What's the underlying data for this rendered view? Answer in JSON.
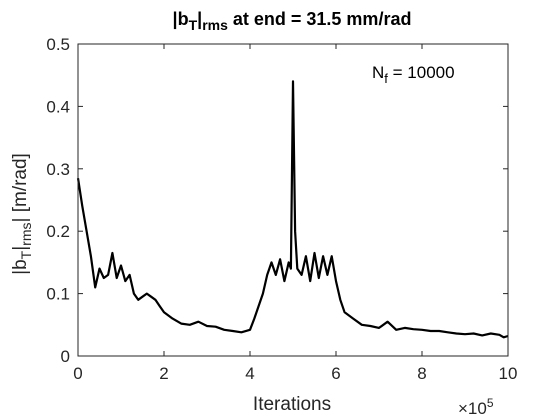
{
  "chart_data": {
    "type": "line",
    "title": {
      "main": "|b",
      "sub1": "T",
      "mid": "|",
      "sub2": "rms",
      "tail": " at end = 31.5 mm/rad"
    },
    "xlabel": "Iterations",
    "ylabel": {
      "pre": "|b",
      "sub1": "T",
      "mid": "|",
      "sub2": "rms",
      "post": "| [m/rad]"
    },
    "x_multiplier": {
      "base": "×10",
      "exponent": "5"
    },
    "xlim": [
      0,
      10
    ],
    "ylim": [
      0,
      0.5
    ],
    "xticks": [
      "0",
      "2",
      "4",
      "6",
      "8",
      "10"
    ],
    "yticks": [
      "0",
      "0.1",
      "0.2",
      "0.3",
      "0.4",
      "0.5"
    ],
    "xtick_values": [
      0,
      2,
      4,
      6,
      8,
      10
    ],
    "ytick_values": [
      0,
      0.1,
      0.2,
      0.3,
      0.4,
      0.5
    ],
    "grid": false,
    "annotation": {
      "base": "N",
      "sub": "f",
      "tail": " = 10000"
    },
    "series": [
      {
        "color": "#000000",
        "x": [
          0,
          0.1,
          0.2,
          0.3,
          0.4,
          0.5,
          0.6,
          0.7,
          0.8,
          0.9,
          1.0,
          1.1,
          1.2,
          1.3,
          1.4,
          1.5,
          1.6,
          1.7,
          1.8,
          1.9,
          2.0,
          2.2,
          2.4,
          2.6,
          2.8,
          3.0,
          3.2,
          3.4,
          3.6,
          3.8,
          4.0,
          4.1,
          4.2,
          4.3,
          4.4,
          4.5,
          4.6,
          4.7,
          4.8,
          4.9,
          4.95,
          5.0,
          5.05,
          5.1,
          5.2,
          5.3,
          5.4,
          5.5,
          5.6,
          5.7,
          5.8,
          5.9,
          6.0,
          6.1,
          6.2,
          6.4,
          6.6,
          6.8,
          7.0,
          7.2,
          7.4,
          7.6,
          7.8,
          8.0,
          8.2,
          8.4,
          8.6,
          8.8,
          9.0,
          9.2,
          9.4,
          9.6,
          9.8,
          9.9,
          10.0
        ],
        "y": [
          0.285,
          0.24,
          0.2,
          0.16,
          0.11,
          0.14,
          0.125,
          0.13,
          0.165,
          0.125,
          0.145,
          0.12,
          0.13,
          0.1,
          0.09,
          0.095,
          0.1,
          0.095,
          0.09,
          0.08,
          0.07,
          0.06,
          0.052,
          0.05,
          0.055,
          0.048,
          0.047,
          0.042,
          0.04,
          0.038,
          0.042,
          0.06,
          0.08,
          0.1,
          0.13,
          0.15,
          0.13,
          0.155,
          0.12,
          0.15,
          0.14,
          0.44,
          0.2,
          0.14,
          0.13,
          0.16,
          0.12,
          0.165,
          0.125,
          0.16,
          0.13,
          0.16,
          0.12,
          0.09,
          0.07,
          0.06,
          0.05,
          0.048,
          0.045,
          0.055,
          0.042,
          0.045,
          0.043,
          0.042,
          0.04,
          0.04,
          0.038,
          0.036,
          0.035,
          0.036,
          0.033,
          0.036,
          0.034,
          0.03,
          0.032
        ]
      }
    ]
  }
}
